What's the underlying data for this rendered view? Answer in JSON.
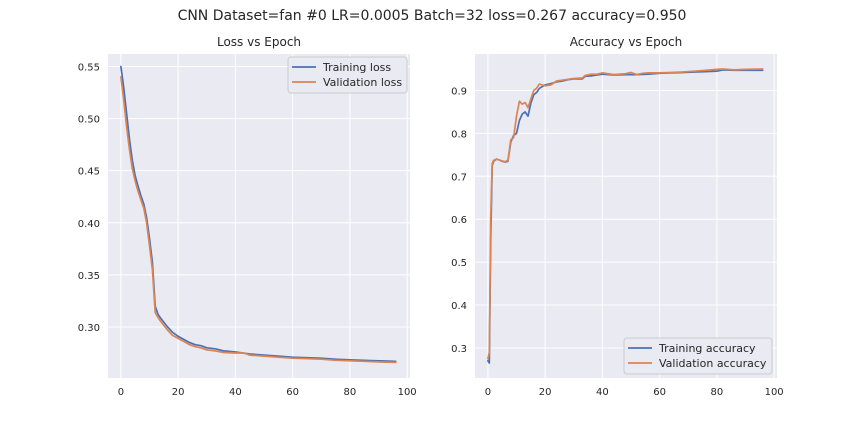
{
  "suptitle": "CNN Dataset=fan #0 LR=0.0005 Batch=32 loss=0.267 accuracy=0.950",
  "colors": {
    "train": "#4c72b0",
    "val": "#dd8452",
    "plot_bg": "#eaeaf2",
    "grid": "#ffffff"
  },
  "chart_data": [
    {
      "type": "line",
      "title": "Loss vs Epoch",
      "xlabel": "",
      "ylabel": "",
      "xlim": [
        -4.5,
        101
      ],
      "ylim": [
        0.251,
        0.562
      ],
      "xticks": [
        0,
        20,
        40,
        60,
        80,
        100
      ],
      "yticks": [
        0.3,
        0.35,
        0.4,
        0.45,
        0.5,
        0.55
      ],
      "ytick_labels": [
        "0.30",
        "0.35",
        "0.40",
        "0.45",
        "0.50",
        "0.55"
      ],
      "grid": true,
      "legend_position": "top-right",
      "series": [
        {
          "name": "Training loss",
          "x": [
            0,
            1,
            2,
            3,
            4,
            5,
            6,
            7,
            8,
            9,
            10,
            11,
            12,
            13,
            14,
            16,
            18,
            20,
            22,
            24,
            26,
            28,
            30,
            33,
            36,
            40,
            45,
            50,
            55,
            60,
            65,
            70,
            75,
            80,
            85,
            90,
            96
          ],
          "values": [
            0.55,
            0.53,
            0.505,
            0.48,
            0.46,
            0.445,
            0.435,
            0.426,
            0.418,
            0.405,
            0.385,
            0.362,
            0.32,
            0.312,
            0.308,
            0.301,
            0.295,
            0.291,
            0.288,
            0.285,
            0.283,
            0.282,
            0.28,
            0.279,
            0.277,
            0.276,
            0.274,
            0.273,
            0.272,
            0.271,
            0.2705,
            0.27,
            0.269,
            0.2685,
            0.268,
            0.2675,
            0.267
          ]
        },
        {
          "name": "Validation loss",
          "x": [
            0,
            1,
            2,
            3,
            4,
            5,
            6,
            7,
            8,
            9,
            10,
            11,
            12,
            13,
            14,
            16,
            18,
            20,
            22,
            24,
            26,
            28,
            30,
            33,
            36,
            40,
            43,
            45,
            50,
            55,
            60,
            65,
            70,
            75,
            80,
            85,
            90,
            96
          ],
          "values": [
            0.54,
            0.518,
            0.492,
            0.47,
            0.452,
            0.44,
            0.43,
            0.422,
            0.414,
            0.4,
            0.378,
            0.355,
            0.314,
            0.309,
            0.305,
            0.298,
            0.292,
            0.289,
            0.286,
            0.283,
            0.281,
            0.28,
            0.278,
            0.277,
            0.2755,
            0.275,
            0.275,
            0.273,
            0.272,
            0.271,
            0.27,
            0.2695,
            0.269,
            0.268,
            0.2675,
            0.267,
            0.2665,
            0.266
          ]
        }
      ]
    },
    {
      "type": "line",
      "title": "Accuracy vs Epoch",
      "xlabel": "",
      "ylabel": "",
      "xlim": [
        -4.5,
        101
      ],
      "ylim": [
        0.23,
        0.985
      ],
      "xticks": [
        0,
        20,
        40,
        60,
        80,
        100
      ],
      "yticks": [
        0.3,
        0.4,
        0.5,
        0.6,
        0.7,
        0.8,
        0.9
      ],
      "ytick_labels": [
        "0.3",
        "0.4",
        "0.5",
        "0.6",
        "0.7",
        "0.8",
        "0.9"
      ],
      "grid": true,
      "legend_position": "bottom-right",
      "series": [
        {
          "name": "Training accuracy",
          "x": [
            0,
            0.5,
            1,
            1.5,
            2,
            3,
            4,
            5,
            6,
            7,
            8,
            9,
            10,
            11,
            12,
            13,
            14,
            15,
            16,
            17,
            18,
            20,
            22,
            24,
            26,
            28,
            30,
            33,
            34,
            36,
            40,
            44,
            48,
            52,
            56,
            60,
            64,
            68,
            72,
            76,
            80,
            82,
            86,
            90,
            96
          ],
          "values": [
            0.27,
            0.265,
            0.55,
            0.725,
            0.735,
            0.74,
            0.738,
            0.735,
            0.733,
            0.735,
            0.78,
            0.795,
            0.8,
            0.83,
            0.845,
            0.85,
            0.84,
            0.87,
            0.89,
            0.895,
            0.905,
            0.913,
            0.916,
            0.92,
            0.922,
            0.925,
            0.927,
            0.927,
            0.933,
            0.934,
            0.938,
            0.936,
            0.937,
            0.937,
            0.938,
            0.94,
            0.941,
            0.942,
            0.943,
            0.944,
            0.945,
            0.948,
            0.947,
            0.947,
            0.947
          ]
        },
        {
          "name": "Validation accuracy",
          "x": [
            0,
            0.5,
            1,
            1.5,
            2,
            3,
            4,
            5,
            6,
            7,
            8,
            9,
            10,
            11,
            12,
            13,
            14,
            15,
            16,
            17,
            18,
            20,
            22,
            24,
            26,
            28,
            30,
            33,
            34,
            36,
            38,
            40,
            44,
            48,
            50,
            52,
            54,
            56,
            60,
            64,
            68,
            72,
            76,
            80,
            82,
            86,
            90,
            96
          ],
          "values": [
            0.275,
            0.29,
            0.6,
            0.73,
            0.737,
            0.74,
            0.738,
            0.736,
            0.734,
            0.737,
            0.785,
            0.79,
            0.84,
            0.875,
            0.868,
            0.872,
            0.86,
            0.88,
            0.9,
            0.905,
            0.915,
            0.911,
            0.913,
            0.922,
            0.924,
            0.926,
            0.928,
            0.929,
            0.935,
            0.938,
            0.938,
            0.941,
            0.937,
            0.939,
            0.942,
            0.937,
            0.94,
            0.941,
            0.941,
            0.942,
            0.943,
            0.945,
            0.947,
            0.949,
            0.95,
            0.948,
            0.949,
            0.95
          ]
        }
      ]
    }
  ]
}
